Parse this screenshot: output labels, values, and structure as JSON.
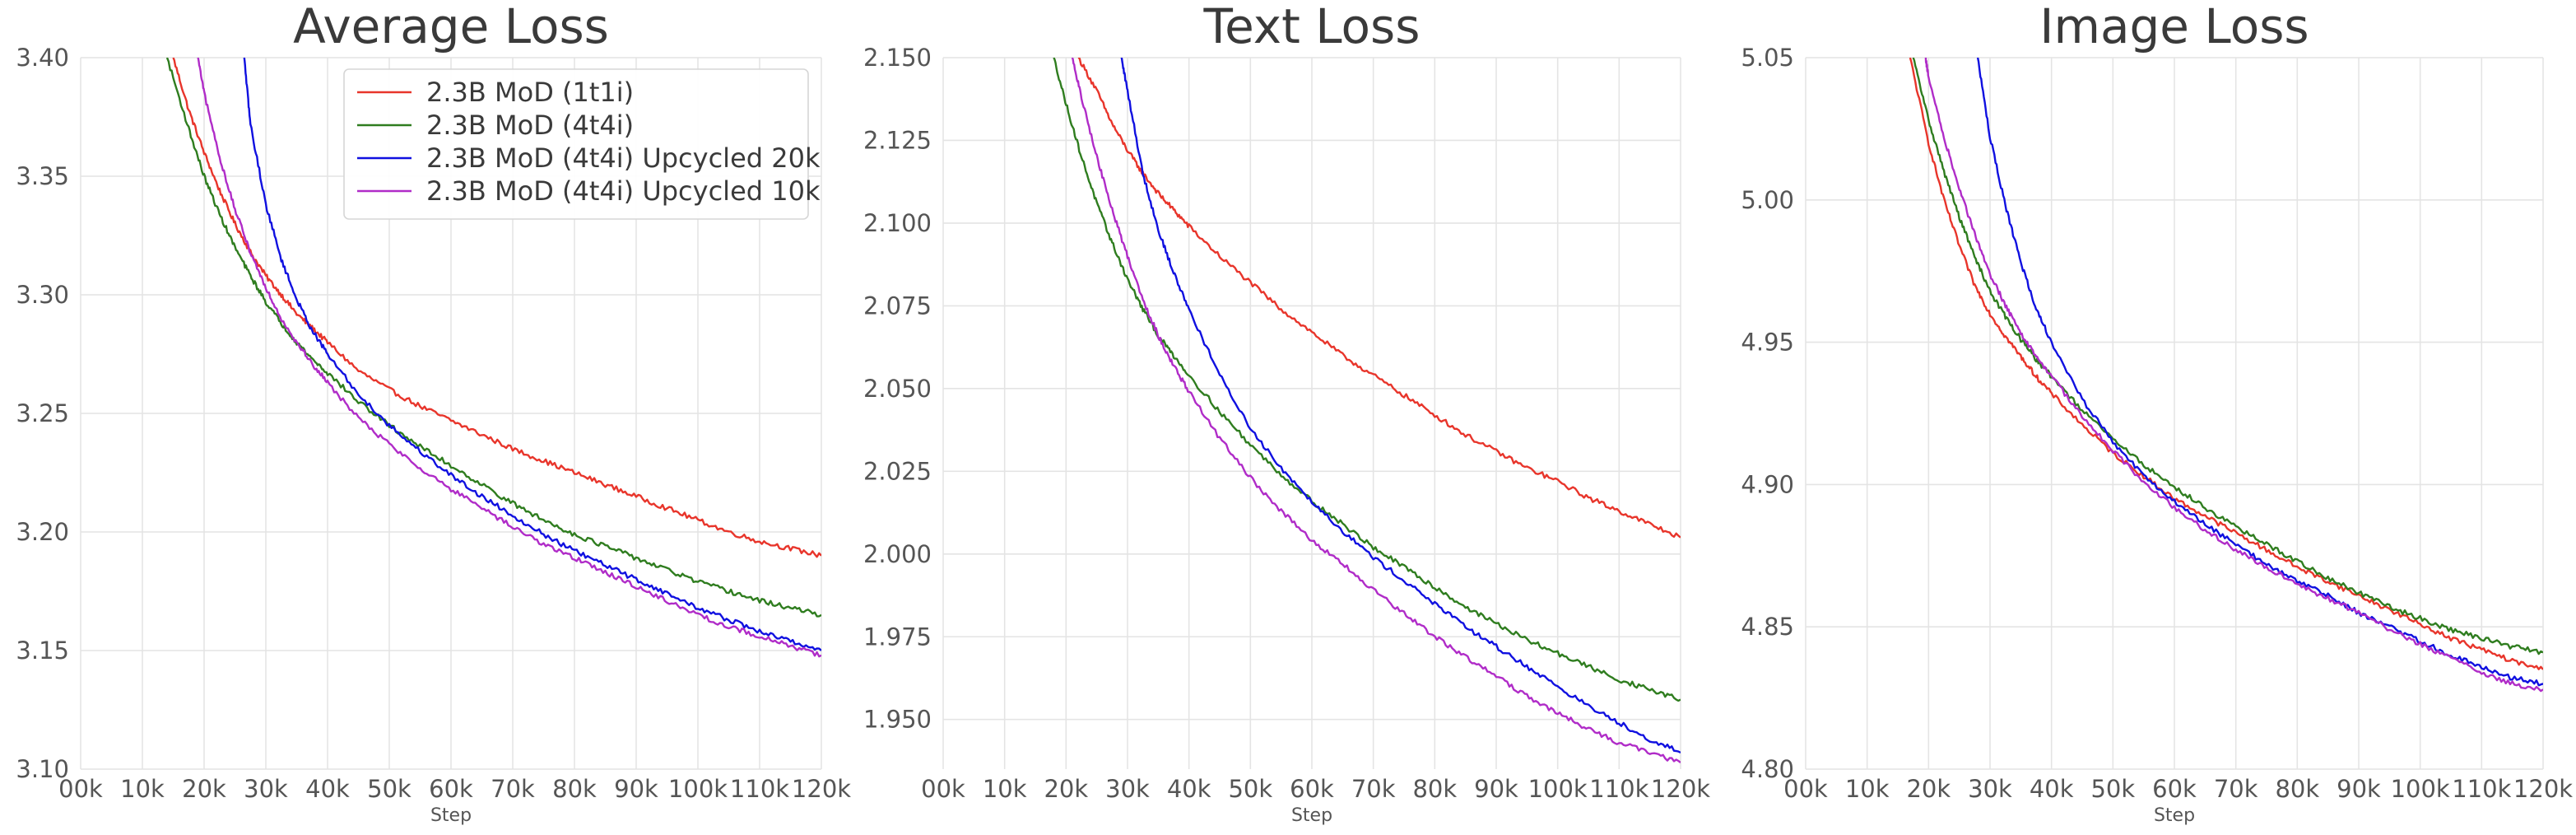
{
  "figure": {
    "series_colors": {
      "2.3B MoD (1t1i)": "#e8352b",
      "2.3B MoD (4t4i)": "#2f7d1f",
      "2.3B MoD (4t4i) Upcycled 20k": "#1010e0",
      "2.3B MoD (4t4i) Upcycled 10k": "#b02cc8"
    }
  },
  "chart_data": [
    {
      "type": "line",
      "title": "Average Loss",
      "xlabel": "Step",
      "ylabel": "",
      "xlim": [
        0,
        120000
      ],
      "ylim": [
        3.1,
        3.4
      ],
      "grid": true,
      "legend": "top-right",
      "x_ticks": [
        0,
        10000,
        20000,
        30000,
        40000,
        50000,
        60000,
        70000,
        80000,
        90000,
        100000,
        110000,
        120000
      ],
      "x_tick_labels": [
        "00k",
        "10k",
        "20k",
        "30k",
        "40k",
        "50k",
        "60k",
        "70k",
        "80k",
        "90k",
        "100k",
        "110k",
        "120k"
      ],
      "y_ticks": [
        3.1,
        3.15,
        3.2,
        3.25,
        3.3,
        3.35,
        3.4
      ],
      "y_tick_labels": [
        "3.10",
        "3.15",
        "3.20",
        "3.25",
        "3.30",
        "3.35",
        "3.40"
      ],
      "series": [
        {
          "name": "2.3B MoD (1t1i)",
          "x": [
            15000,
            17500,
            20000,
            22500,
            25000,
            27500,
            30000,
            32500,
            35000,
            37500,
            40000,
            45000,
            50000,
            55000,
            60000,
            65000,
            70000,
            75000,
            80000,
            85000,
            90000,
            95000,
            100000,
            105000,
            110000,
            115000,
            120000
          ],
          "y": [
            3.4,
            3.378,
            3.36,
            3.344,
            3.33,
            3.318,
            3.308,
            3.3,
            3.292,
            3.286,
            3.28,
            3.268,
            3.26,
            3.253,
            3.247,
            3.241,
            3.235,
            3.23,
            3.225,
            3.22,
            3.215,
            3.21,
            3.205,
            3.2,
            3.196,
            3.193,
            3.19
          ]
        },
        {
          "name": "2.3B MoD (4t4i)",
          "x": [
            14000,
            17500,
            20000,
            22500,
            25000,
            27500,
            30000,
            32500,
            35000,
            37500,
            40000,
            45000,
            50000,
            55000,
            60000,
            65000,
            70000,
            75000,
            80000,
            85000,
            90000,
            95000,
            100000,
            105000,
            110000,
            115000,
            120000
          ],
          "y": [
            3.4,
            3.37,
            3.35,
            3.334,
            3.32,
            3.308,
            3.297,
            3.288,
            3.28,
            3.273,
            3.267,
            3.255,
            3.245,
            3.236,
            3.228,
            3.22,
            3.212,
            3.205,
            3.199,
            3.194,
            3.189,
            3.184,
            3.179,
            3.175,
            3.171,
            3.168,
            3.165
          ]
        },
        {
          "name": "2.3B MoD (4t4i) Upcycled 20k",
          "x": [
            26500,
            27500,
            30000,
            32500,
            35000,
            37500,
            40000,
            45000,
            50000,
            55000,
            60000,
            65000,
            70000,
            75000,
            80000,
            85000,
            90000,
            95000,
            100000,
            105000,
            110000,
            115000,
            120000
          ],
          "y": [
            3.4,
            3.372,
            3.338,
            3.315,
            3.298,
            3.285,
            3.275,
            3.258,
            3.245,
            3.234,
            3.224,
            3.215,
            3.207,
            3.199,
            3.192,
            3.186,
            3.18,
            3.174,
            3.168,
            3.163,
            3.158,
            3.154,
            3.15
          ]
        },
        {
          "name": "2.3B MoD (4t4i) Upcycled 10k",
          "x": [
            19000,
            20000,
            22500,
            25000,
            27500,
            30000,
            32500,
            35000,
            37500,
            40000,
            45000,
            50000,
            55000,
            60000,
            65000,
            70000,
            75000,
            80000,
            85000,
            90000,
            95000,
            100000,
            105000,
            110000,
            115000,
            120000
          ],
          "y": [
            3.4,
            3.385,
            3.358,
            3.336,
            3.318,
            3.303,
            3.29,
            3.28,
            3.271,
            3.263,
            3.248,
            3.237,
            3.227,
            3.218,
            3.21,
            3.202,
            3.195,
            3.189,
            3.183,
            3.177,
            3.171,
            3.165,
            3.16,
            3.156,
            3.152,
            3.148
          ]
        }
      ]
    },
    {
      "type": "line",
      "title": "Text Loss",
      "xlabel": "Step",
      "ylabel": "",
      "xlim": [
        0,
        120000
      ],
      "ylim": [
        1.935,
        2.15
      ],
      "grid": true,
      "legend": "none",
      "x_ticks": [
        0,
        10000,
        20000,
        30000,
        40000,
        50000,
        60000,
        70000,
        80000,
        90000,
        100000,
        110000,
        120000
      ],
      "x_tick_labels": [
        "00k",
        "10k",
        "20k",
        "30k",
        "40k",
        "50k",
        "60k",
        "70k",
        "80k",
        "90k",
        "100k",
        "110k",
        "120k"
      ],
      "y_ticks": [
        1.95,
        1.975,
        2.0,
        2.025,
        2.05,
        2.075,
        2.1,
        2.125,
        2.15
      ],
      "y_tick_labels": [
        "1.950",
        "1.975",
        "2.000",
        "2.025",
        "2.050",
        "2.075",
        "2.100",
        "2.125",
        "2.150"
      ],
      "series": [
        {
          "name": "2.3B MoD (1t1i)",
          "x": [
            22000,
            25000,
            27500,
            30000,
            32500,
            35000,
            37500,
            40000,
            45000,
            50000,
            55000,
            60000,
            65000,
            70000,
            75000,
            80000,
            85000,
            90000,
            95000,
            100000,
            105000,
            110000,
            115000,
            120000
          ],
          "y": [
            2.15,
            2.14,
            2.13,
            2.122,
            2.115,
            2.109,
            2.104,
            2.099,
            2.09,
            2.082,
            2.074,
            2.067,
            2.06,
            2.054,
            2.048,
            2.042,
            2.036,
            2.031,
            2.026,
            2.022,
            2.017,
            2.013,
            2.009,
            2.005
          ]
        },
        {
          "name": "2.3B MoD (4t4i)",
          "x": [
            18000,
            20000,
            22500,
            25000,
            27500,
            30000,
            32500,
            35000,
            37500,
            40000,
            45000,
            50000,
            55000,
            60000,
            65000,
            70000,
            75000,
            80000,
            85000,
            90000,
            95000,
            100000,
            105000,
            110000,
            115000,
            120000
          ],
          "y": [
            2.15,
            2.136,
            2.12,
            2.106,
            2.094,
            2.083,
            2.074,
            2.066,
            2.06,
            2.054,
            2.043,
            2.033,
            2.024,
            2.016,
            2.009,
            2.002,
            1.996,
            1.99,
            1.984,
            1.979,
            1.974,
            1.97,
            1.966,
            1.962,
            1.959,
            1.956
          ]
        },
        {
          "name": "2.3B MoD (4t4i) Upcycled 20k",
          "x": [
            29000,
            30000,
            32500,
            35000,
            37500,
            40000,
            45000,
            50000,
            55000,
            60000,
            65000,
            70000,
            75000,
            80000,
            85000,
            90000,
            95000,
            100000,
            105000,
            110000,
            115000,
            120000
          ],
          "y": [
            2.15,
            2.14,
            2.115,
            2.098,
            2.085,
            2.074,
            2.054,
            2.038,
            2.026,
            2.016,
            2.007,
            1.999,
            1.992,
            1.985,
            1.978,
            1.972,
            1.966,
            1.96,
            1.954,
            1.949,
            1.944,
            1.94
          ]
        },
        {
          "name": "2.3B MoD (4t4i) Upcycled 10k",
          "x": [
            21000,
            22500,
            25000,
            27500,
            30000,
            32500,
            35000,
            37500,
            40000,
            45000,
            50000,
            55000,
            60000,
            65000,
            70000,
            75000,
            80000,
            85000,
            90000,
            95000,
            100000,
            105000,
            110000,
            115000,
            120000
          ],
          "y": [
            2.15,
            2.138,
            2.12,
            2.104,
            2.09,
            2.077,
            2.066,
            2.057,
            2.049,
            2.035,
            2.023,
            2.013,
            2.004,
            1.997,
            1.989,
            1.982,
            1.975,
            1.969,
            1.963,
            1.957,
            1.952,
            1.947,
            1.943,
            1.94,
            1.937
          ]
        }
      ]
    },
    {
      "type": "line",
      "title": "Image Loss",
      "xlabel": "Step",
      "ylabel": "",
      "xlim": [
        0,
        120000
      ],
      "ylim": [
        4.8,
        5.05
      ],
      "grid": true,
      "legend": "none",
      "x_ticks": [
        0,
        10000,
        20000,
        30000,
        40000,
        50000,
        60000,
        70000,
        80000,
        90000,
        100000,
        110000,
        120000
      ],
      "x_tick_labels": [
        "00k",
        "10k",
        "20k",
        "30k",
        "40k",
        "50k",
        "60k",
        "70k",
        "80k",
        "90k",
        "100k",
        "110k",
        "120k"
      ],
      "y_ticks": [
        4.8,
        4.85,
        4.9,
        4.95,
        5.0,
        5.05
      ],
      "y_tick_labels": [
        "4.80",
        "4.85",
        "4.90",
        "4.95",
        "5.00",
        "5.05"
      ],
      "series": [
        {
          "name": "2.3B MoD (1t1i)",
          "x": [
            17000,
            20000,
            22500,
            25000,
            27500,
            30000,
            32500,
            35000,
            37500,
            40000,
            45000,
            50000,
            55000,
            60000,
            65000,
            70000,
            75000,
            80000,
            85000,
            90000,
            95000,
            100000,
            105000,
            110000,
            115000,
            120000
          ],
          "y": [
            5.05,
            5.02,
            5.0,
            4.984,
            4.97,
            4.96,
            4.952,
            4.945,
            4.938,
            4.932,
            4.921,
            4.911,
            4.903,
            4.895,
            4.889,
            4.883,
            4.877,
            4.871,
            4.866,
            4.861,
            4.856,
            4.851,
            4.846,
            4.842,
            4.838,
            4.835
          ]
        },
        {
          "name": "2.3B MoD (4t4i)",
          "x": [
            17500,
            20000,
            22500,
            25000,
            27500,
            30000,
            32500,
            35000,
            37500,
            40000,
            45000,
            50000,
            55000,
            60000,
            65000,
            70000,
            75000,
            80000,
            85000,
            90000,
            95000,
            100000,
            105000,
            110000,
            115000,
            120000
          ],
          "y": [
            5.05,
            5.028,
            5.01,
            4.994,
            4.98,
            4.968,
            4.959,
            4.951,
            4.944,
            4.938,
            4.926,
            4.916,
            4.907,
            4.899,
            4.892,
            4.885,
            4.879,
            4.873,
            4.867,
            4.862,
            4.857,
            4.853,
            4.849,
            4.846,
            4.843,
            4.841
          ]
        },
        {
          "name": "2.3B MoD (4t4i) Upcycled 20k",
          "x": [
            28000,
            30000,
            32500,
            35000,
            37500,
            40000,
            45000,
            50000,
            55000,
            60000,
            65000,
            70000,
            75000,
            80000,
            85000,
            90000,
            95000,
            100000,
            105000,
            110000,
            115000,
            120000
          ],
          "y": [
            5.05,
            5.022,
            4.998,
            4.978,
            4.962,
            4.95,
            4.93,
            4.915,
            4.903,
            4.894,
            4.886,
            4.879,
            4.872,
            4.866,
            4.861,
            4.855,
            4.85,
            4.845,
            4.84,
            4.836,
            4.832,
            4.83
          ]
        },
        {
          "name": "2.3B MoD (4t4i) Upcycled 10k",
          "x": [
            19500,
            20000,
            22500,
            25000,
            27500,
            30000,
            32500,
            35000,
            37500,
            40000,
            45000,
            50000,
            55000,
            60000,
            65000,
            70000,
            75000,
            80000,
            85000,
            90000,
            95000,
            100000,
            105000,
            110000,
            115000,
            120000
          ],
          "y": [
            5.05,
            5.043,
            5.022,
            5.004,
            4.988,
            4.974,
            4.963,
            4.953,
            4.945,
            4.938,
            4.924,
            4.912,
            4.901,
            4.892,
            4.884,
            4.877,
            4.871,
            4.865,
            4.86,
            4.855,
            4.849,
            4.844,
            4.839,
            4.834,
            4.83,
            4.828
          ]
        }
      ]
    }
  ]
}
